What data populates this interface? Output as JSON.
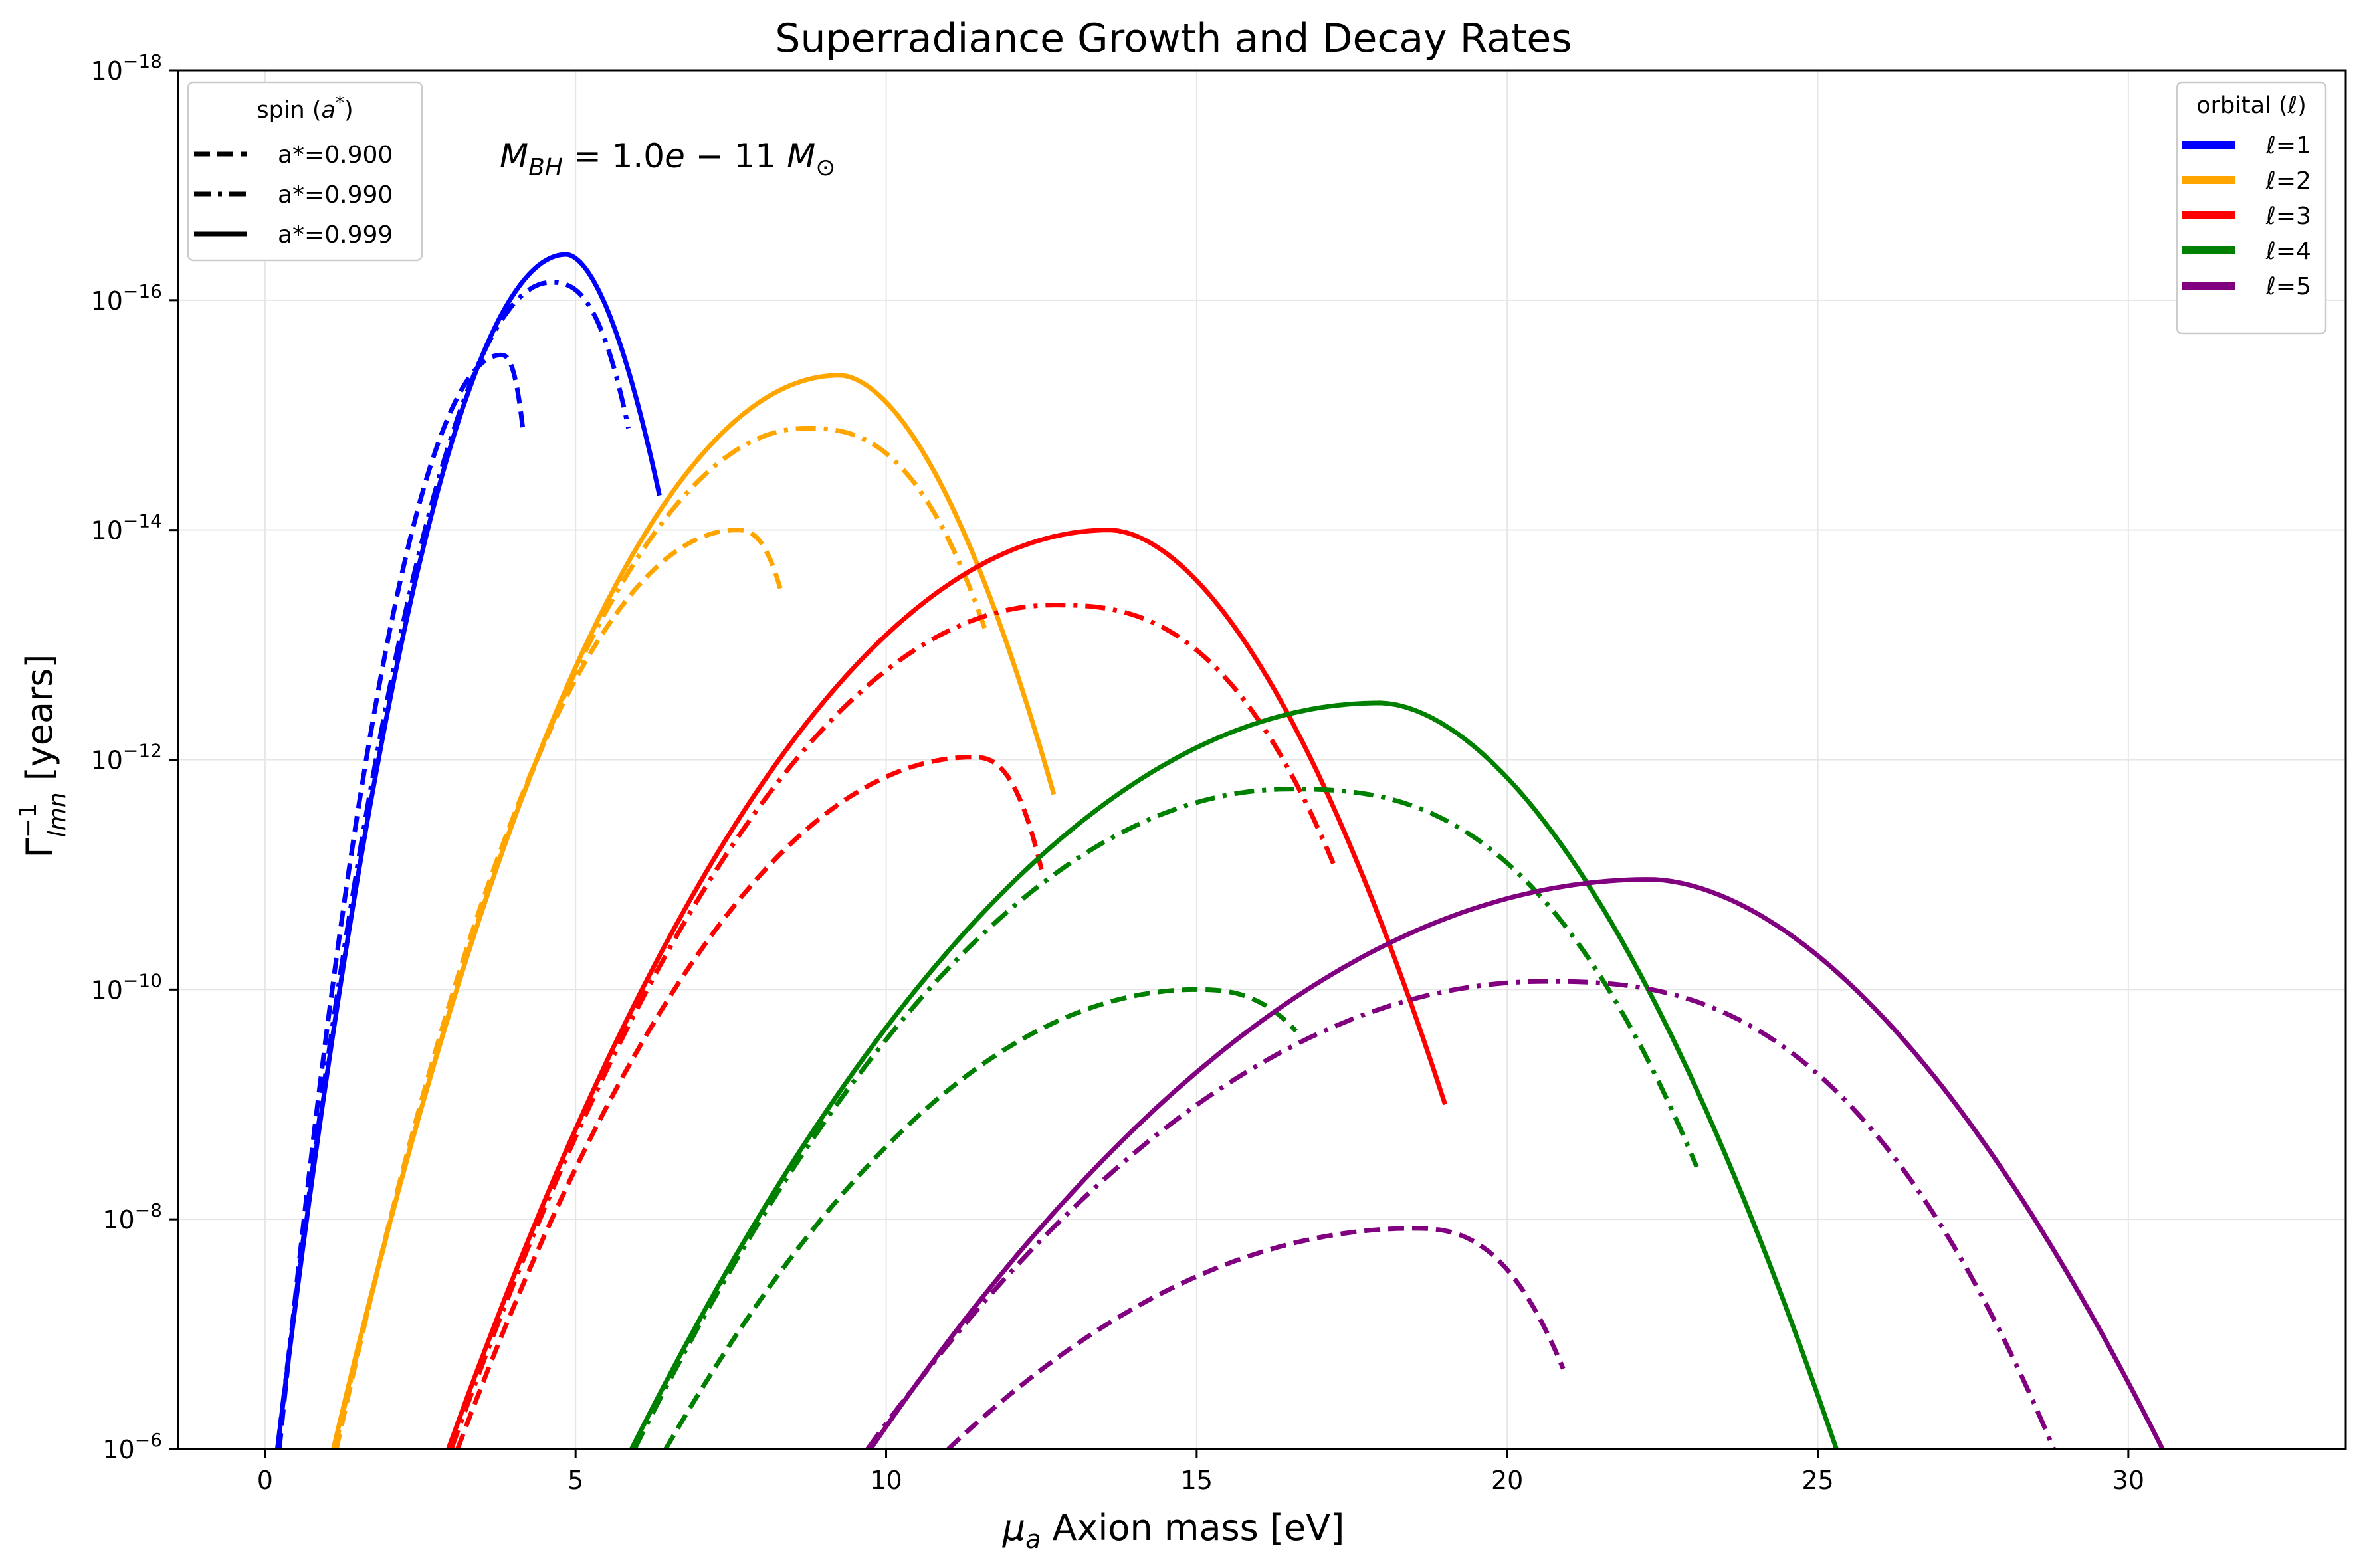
{
  "chart_data": {
    "type": "line",
    "title": "Superradiance Growth and Decay Rates",
    "xlabel": "μ_a Axion mass [eV]",
    "ylabel": "Γ⁻¹_lmn [years]",
    "xlim": [
      -1.4,
      33.5
    ],
    "ylim": [
      1e-18,
      1e-06
    ],
    "yscale": "log",
    "y_inverted": true,
    "grid": true,
    "x_ticks": [
      "0",
      "5",
      "10",
      "15",
      "20",
      "25",
      "30"
    ],
    "y_ticks": [
      "10^-18",
      "10^-16",
      "10^-14",
      "10^-12",
      "10^-10",
      "10^-8",
      "10^-6"
    ],
    "annotation": "M_BH = 1.0e − 11 M_⊙",
    "legend_spin": {
      "title": "spin (a*)",
      "placement": "upper left",
      "entries": [
        {
          "label": "a*=0.900",
          "style": "dashed"
        },
        {
          "label": "a*=0.990",
          "style": "dashdot"
        },
        {
          "label": "a*=0.999",
          "style": "solid"
        }
      ]
    },
    "legend_orbital": {
      "title": "orbital (ℓ)",
      "placement": "upper right",
      "entries": [
        {
          "label": "ℓ=1",
          "color": "#0000ff"
        },
        {
          "label": "ℓ=2",
          "color": "#ffa500"
        },
        {
          "label": "ℓ=3",
          "color": "#ff0000"
        },
        {
          "label": "ℓ=4",
          "color": "#008000"
        },
        {
          "label": "ℓ=5",
          "color": "#800080"
        }
      ]
    },
    "series": [
      {
        "l": 1,
        "spin": "0.900",
        "color": "#0000ff",
        "style": "dashed",
        "x_start": 0.23,
        "x_peak": 3.8,
        "peak": 3e-16,
        "x_end": 4.15,
        "end": 1.3e-15
      },
      {
        "l": 1,
        "spin": "0.990",
        "color": "#0000ff",
        "style": "dashdot",
        "x_start": 0.2,
        "x_peak": 4.6,
        "peak": 7e-17,
        "x_end": 5.85,
        "end": 1.3e-15
      },
      {
        "l": 1,
        "spin": "0.999",
        "color": "#0000ff",
        "style": "solid",
        "x_start": 0.2,
        "x_peak": 4.85,
        "peak": 4e-17,
        "x_end": 6.35,
        "end": 5e-15
      },
      {
        "l": 2,
        "spin": "0.900",
        "color": "#ffa500",
        "style": "dashed",
        "x_start": 1.15,
        "x_peak": 7.6,
        "peak": 1e-14,
        "x_end": 8.3,
        "end": 3.3e-14
      },
      {
        "l": 2,
        "spin": "0.990",
        "color": "#ffa500",
        "style": "dashdot",
        "x_start": 1.12,
        "x_peak": 8.7,
        "peak": 1.3e-15,
        "x_end": 11.6,
        "end": 7.5e-14
      },
      {
        "l": 2,
        "spin": "0.999",
        "color": "#ffa500",
        "style": "solid",
        "x_start": 1.1,
        "x_peak": 9.25,
        "peak": 4.5e-16,
        "x_end": 12.7,
        "end": 2e-12
      },
      {
        "l": 3,
        "spin": "0.900",
        "color": "#ff0000",
        "style": "dashed",
        "x_start": 3.1,
        "x_peak": 11.4,
        "peak": 9.5e-13,
        "x_end": 12.5,
        "end": 9e-12
      },
      {
        "l": 3,
        "spin": "0.990",
        "color": "#ff0000",
        "style": "dashdot",
        "x_start": 3.0,
        "x_peak": 12.7,
        "peak": 4.5e-14,
        "x_end": 17.2,
        "end": 8e-12
      },
      {
        "l": 3,
        "spin": "0.999",
        "color": "#ff0000",
        "style": "solid",
        "x_start": 2.95,
        "x_peak": 13.6,
        "peak": 1e-14,
        "x_end": 19.0,
        "end": 1e-09
      },
      {
        "l": 4,
        "spin": "0.900",
        "color": "#008000",
        "style": "dashed",
        "x_start": 6.45,
        "x_peak": 15.0,
        "peak": 1e-10,
        "x_end": 16.6,
        "end": 2.3e-10
      },
      {
        "l": 4,
        "spin": "0.990",
        "color": "#008000",
        "style": "dashdot",
        "x_start": 5.95,
        "x_peak": 16.5,
        "peak": 1.8e-12,
        "x_end": 23.05,
        "end": 3.5e-09
      },
      {
        "l": 4,
        "spin": "0.999",
        "color": "#008000",
        "style": "solid",
        "x_start": 5.9,
        "x_peak": 17.95,
        "peak": 3.2e-13,
        "x_end": 25.3,
        "end": 1e-06
      },
      {
        "l": 5,
        "spin": "0.900",
        "color": "#800080",
        "style": "dashed",
        "x_start": 11.0,
        "x_peak": 18.5,
        "peak": 1.2e-08,
        "x_end": 20.9,
        "end": 2e-07
      },
      {
        "l": 5,
        "spin": "0.990",
        "color": "#800080",
        "style": "dashdot",
        "x_start": 9.7,
        "x_peak": 20.6,
        "peak": 8.5e-11,
        "x_end": 28.8,
        "end": 1e-06
      },
      {
        "l": 5,
        "spin": "0.999",
        "color": "#800080",
        "style": "solid",
        "x_start": 9.75,
        "x_peak": 22.3,
        "peak": 1.1e-11,
        "x_end": 30.55,
        "end": 1e-06
      }
    ]
  }
}
